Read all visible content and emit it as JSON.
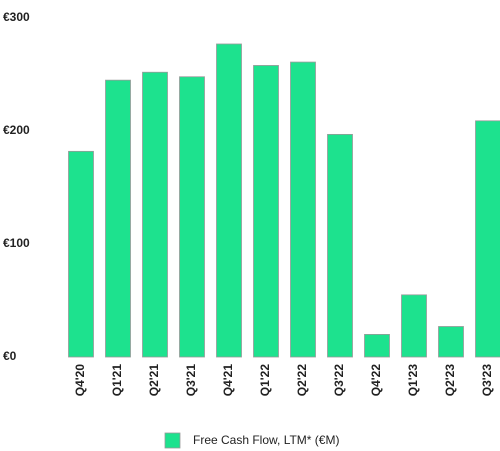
{
  "chart_data": {
    "type": "bar",
    "categories": [
      "Q4'20",
      "Q1'21",
      "Q2'21",
      "Q3'21",
      "Q4'21",
      "Q1'22",
      "Q2'22",
      "Q3'22",
      "Q4'22",
      "Q1'23",
      "Q2'23",
      "Q3'23"
    ],
    "series": [
      {
        "name": "Free Cash Flow, LTM* (€M)",
        "color": "#1de28e",
        "values": [
          182,
          245,
          252,
          248,
          277,
          258,
          261,
          197,
          20,
          55,
          27,
          209
        ]
      }
    ],
    "ylim": [
      0,
      300
    ],
    "yticks": [
      {
        "value": 0,
        "label": "€0"
      },
      {
        "value": 100,
        "label": "€100"
      },
      {
        "value": 200,
        "label": "€200"
      },
      {
        "value": 300,
        "label": "€300"
      }
    ],
    "grid": false
  }
}
